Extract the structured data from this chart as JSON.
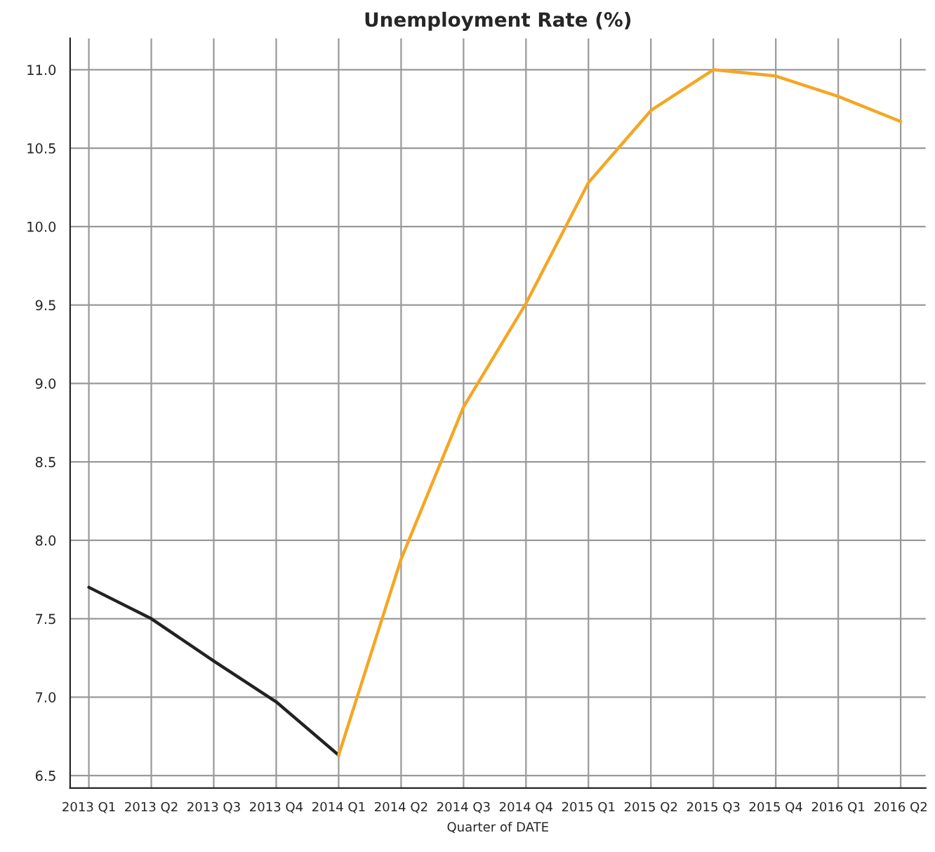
{
  "chart_data": {
    "type": "line",
    "title": "Unemployment Rate (%)",
    "xlabel": "Quarter of DATE",
    "categories": [
      "2013 Q1",
      "2013 Q2",
      "2013 Q3",
      "2013 Q4",
      "2014 Q1",
      "2014 Q2",
      "2014 Q3",
      "2014 Q4",
      "2015 Q1",
      "2015 Q2",
      "2015 Q3",
      "2015 Q4",
      "2016 Q1",
      "2016 Q2"
    ],
    "series": [
      {
        "color": "#222222",
        "values": [
          7.7,
          7.5,
          7.23,
          6.97,
          6.63,
          null,
          null,
          null,
          null,
          null,
          null,
          null,
          null,
          null
        ]
      },
      {
        "color": "#f5a623",
        "values": [
          null,
          null,
          null,
          null,
          6.63,
          7.88,
          8.85,
          9.51,
          10.28,
          10.74,
          11.0,
          10.96,
          10.83,
          10.67
        ]
      }
    ],
    "ylim": [
      6.42,
      11.2
    ],
    "yticks": [
      {
        "value": 6.5,
        "label": "6.5"
      },
      {
        "value": 7.0,
        "label": "7.0"
      },
      {
        "value": 7.5,
        "label": "7.5"
      },
      {
        "value": 8.0,
        "label": "8.0"
      },
      {
        "value": 8.5,
        "label": "8.5"
      },
      {
        "value": 9.0,
        "label": "9.0"
      },
      {
        "value": 9.5,
        "label": "9.5"
      },
      {
        "value": 10.0,
        "label": "10.0"
      },
      {
        "value": 10.5,
        "label": "10.5"
      },
      {
        "value": 11.0,
        "label": "11.0"
      }
    ],
    "grid": true,
    "legend": false,
    "marker": "none",
    "line_style": "solid"
  }
}
